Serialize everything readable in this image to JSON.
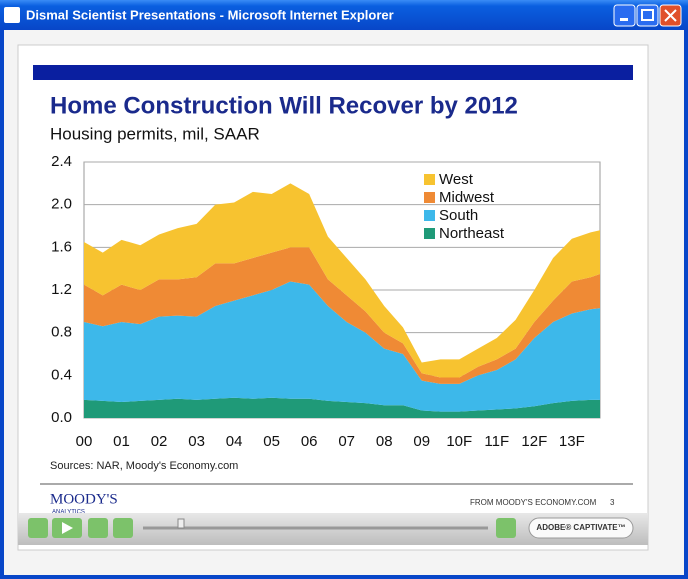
{
  "window": {
    "title": "Dismal Scientist Presentations - Microsoft Internet Explorer"
  },
  "chart_data": {
    "type": "stacked-area",
    "title": "Home Construction Will Recover by 2012",
    "subtitle": "Housing permits, mil, SAAR",
    "x": [
      0,
      0.5,
      1,
      1.5,
      2,
      2.5,
      3,
      3.5,
      4,
      4.5,
      5,
      5.5,
      6,
      6.5,
      7,
      7.5,
      8,
      8.5,
      9,
      9.5,
      10,
      10.5,
      11,
      11.5,
      12,
      12.5,
      13,
      13.5,
      13.75
    ],
    "xlim": [
      0,
      13.75
    ],
    "xticks": [
      {
        "value": 0,
        "label": "00"
      },
      {
        "value": 1,
        "label": "01"
      },
      {
        "value": 2,
        "label": "02"
      },
      {
        "value": 3,
        "label": "03"
      },
      {
        "value": 4,
        "label": "04"
      },
      {
        "value": 5,
        "label": "05"
      },
      {
        "value": 6,
        "label": "06"
      },
      {
        "value": 7,
        "label": "07"
      },
      {
        "value": 8,
        "label": "08"
      },
      {
        "value": 9,
        "label": "09"
      },
      {
        "value": 10,
        "label": "10F"
      },
      {
        "value": 11,
        "label": "11F"
      },
      {
        "value": 12,
        "label": "12F"
      },
      {
        "value": 13,
        "label": "13F"
      }
    ],
    "ylim": [
      0,
      2.4
    ],
    "yticks": [
      {
        "value": 0,
        "label": "0.0"
      },
      0.4,
      0.8,
      1.2,
      1.6,
      {
        "value": 2,
        "label": "2.0"
      },
      2.4
    ],
    "grid": true,
    "legend": "top-right",
    "series": [
      {
        "name": "Northeast",
        "color": "#1f9a78",
        "values": [
          0.17,
          0.16,
          0.15,
          0.16,
          0.17,
          0.18,
          0.17,
          0.18,
          0.19,
          0.18,
          0.19,
          0.18,
          0.18,
          0.16,
          0.15,
          0.14,
          0.12,
          0.12,
          0.07,
          0.06,
          0.06,
          0.07,
          0.08,
          0.09,
          0.11,
          0.14,
          0.16,
          0.17,
          0.17
        ]
      },
      {
        "name": "South",
        "color": "#3db8ea",
        "values": [
          0.73,
          0.7,
          0.75,
          0.72,
          0.78,
          0.78,
          0.78,
          0.87,
          0.91,
          0.97,
          1.01,
          1.1,
          1.07,
          0.89,
          0.75,
          0.66,
          0.53,
          0.48,
          0.28,
          0.26,
          0.26,
          0.33,
          0.37,
          0.46,
          0.64,
          0.76,
          0.82,
          0.85,
          0.86
        ]
      },
      {
        "name": "Midwest",
        "color": "#ef8a35",
        "values": [
          0.35,
          0.29,
          0.35,
          0.32,
          0.35,
          0.34,
          0.37,
          0.4,
          0.35,
          0.35,
          0.35,
          0.32,
          0.35,
          0.25,
          0.25,
          0.2,
          0.15,
          0.1,
          0.07,
          0.06,
          0.06,
          0.08,
          0.1,
          0.1,
          0.15,
          0.2,
          0.3,
          0.3,
          0.32
        ]
      },
      {
        "name": "West",
        "color": "#f7c330",
        "values": [
          0.4,
          0.4,
          0.42,
          0.42,
          0.42,
          0.48,
          0.5,
          0.55,
          0.57,
          0.62,
          0.55,
          0.6,
          0.5,
          0.4,
          0.35,
          0.3,
          0.25,
          0.15,
          0.1,
          0.17,
          0.17,
          0.17,
          0.2,
          0.27,
          0.3,
          0.4,
          0.4,
          0.42,
          0.41
        ]
      }
    ],
    "sources": "Sources: NAR, Moody's Economy.com"
  },
  "slide": {
    "logo": "MOODY'S",
    "logo_sub": "ANALYTICS",
    "footer": "FROM MOODY'S ECONOMY.COM",
    "page_number": "3"
  },
  "player": {
    "brand": "ADOBE® CAPTIVATE™"
  }
}
